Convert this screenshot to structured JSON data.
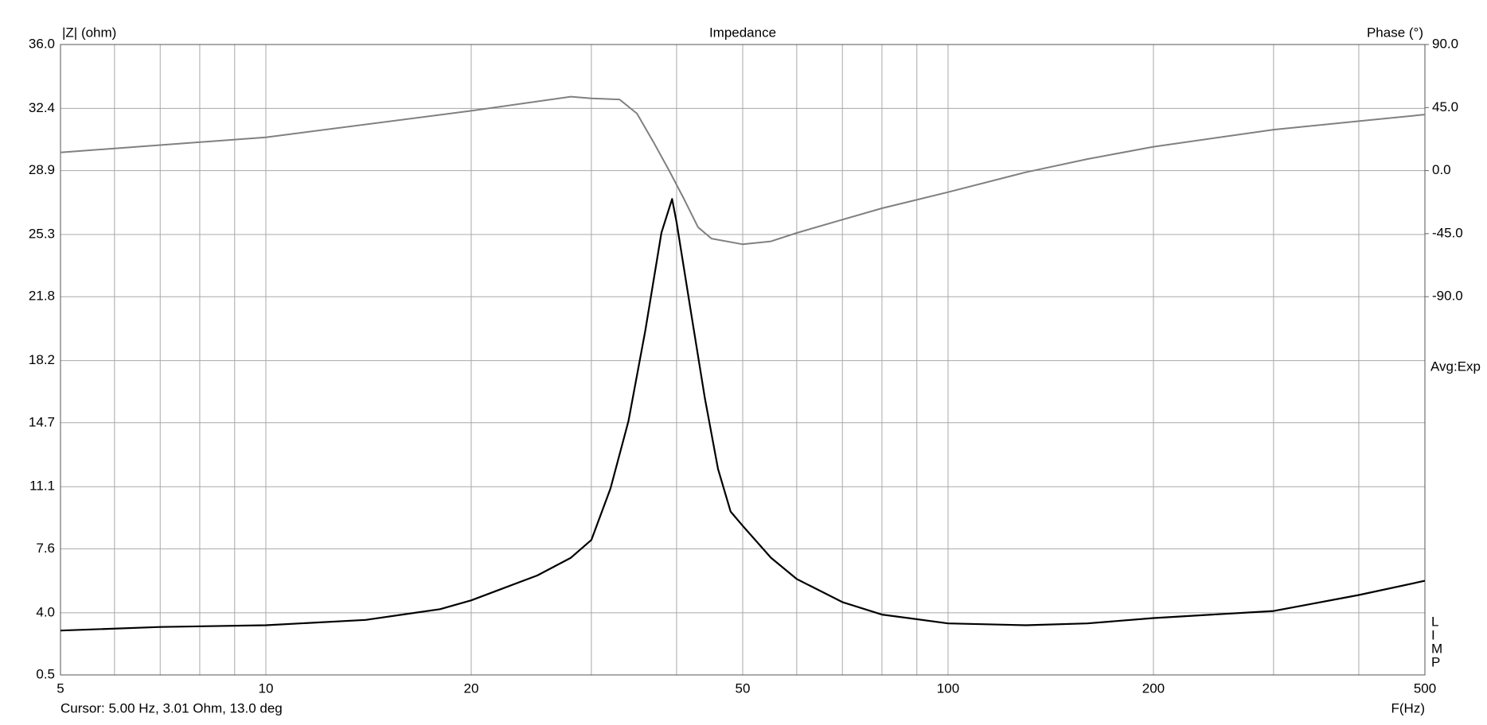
{
  "chart_data": {
    "type": "line",
    "title": "Impedance",
    "y_label": "|Z| (ohm)",
    "y2_label": "Phase (°)",
    "x_label": "F(Hz)",
    "cursor": "Cursor: 5.00 Hz, 3.01 Ohm, 13.0 deg",
    "side_label": "Avg:Exp",
    "side_letters": [
      "L",
      "I",
      "M",
      "P"
    ],
    "xscale": "log",
    "xlim": [
      5,
      500
    ],
    "xticks": [
      5,
      10,
      20,
      50,
      100,
      200,
      500
    ],
    "xgrid_minor": [
      6,
      7,
      8,
      9,
      30,
      40,
      60,
      70,
      80,
      90,
      300,
      400
    ],
    "ylim": [
      0.5,
      36.0
    ],
    "yticks": [
      0.5,
      {
        "value": 4,
        "label": "4.0"
      },
      7.6,
      11.1,
      14.7,
      18.2,
      21.8,
      25.3,
      28.9,
      32.4,
      {
        "value": 36,
        "label": "36.0"
      }
    ],
    "y2lim": [
      -360,
      90
    ],
    "y2ticks": [
      {
        "value": 90,
        "label": "90.0"
      },
      {
        "value": 45,
        "label": "45.0"
      },
      {
        "value": 0,
        "label": "0.0"
      },
      {
        "value": -45,
        "label": "-45.0"
      },
      {
        "value": -90,
        "label": "-90.0"
      }
    ],
    "grid": true,
    "series": [
      {
        "name": "Impedance",
        "color": "#000000",
        "x": [
          5,
          7,
          10,
          14,
          18,
          20,
          22,
          25,
          28,
          30,
          32,
          34,
          36,
          38,
          39.4,
          40,
          42,
          44,
          46,
          48,
          50,
          55,
          60,
          70,
          80,
          100,
          130,
          160,
          200,
          300,
          400,
          500
        ],
        "values": [
          3.0,
          3.2,
          3.3,
          3.6,
          4.2,
          4.7,
          5.3,
          6.1,
          7.1,
          8.1,
          11.0,
          14.8,
          19.9,
          25.4,
          27.3,
          26.0,
          20.9,
          16.1,
          12.1,
          9.7,
          8.9,
          7.1,
          5.9,
          4.6,
          3.9,
          3.4,
          3.3,
          3.4,
          3.7,
          4.1,
          5.0,
          5.8
        ]
      },
      {
        "name": "Phase",
        "color": "#808080",
        "axis": "y2",
        "x": [
          5,
          10,
          20,
          28,
          30,
          33,
          35,
          37,
          39,
          41,
          43,
          45,
          50,
          55,
          60,
          70,
          80,
          100,
          130,
          160,
          200,
          300,
          400,
          500
        ],
        "values": [
          13.0,
          23.8,
          42.7,
          52.8,
          51.5,
          50.8,
          40.7,
          20.4,
          0.1,
          -20.1,
          -40.4,
          -48.5,
          -52.6,
          -50.5,
          -44.5,
          -35.0,
          -26.9,
          -15.4,
          -1.2,
          8.2,
          17.0,
          29.2,
          35.3,
          40.0
        ]
      }
    ]
  }
}
